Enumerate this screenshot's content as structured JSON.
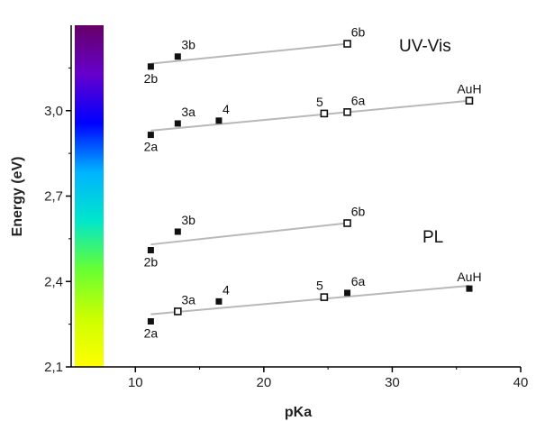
{
  "chart_data": {
    "type": "scatter",
    "xlabel": "pKa",
    "ylabel": "Energy (eV)",
    "xlim": [
      5,
      40
    ],
    "ylim": [
      2.1,
      3.3
    ],
    "x_ticks": [
      10,
      20,
      30,
      40
    ],
    "x_tick_labels": [
      "10",
      "20",
      "30",
      "40"
    ],
    "y_ticks": [
      2.1,
      2.4,
      2.7,
      3.0
    ],
    "y_tick_labels": [
      "2,1",
      "2,4",
      "2,7",
      "3,0"
    ],
    "colorbar": {
      "range": [
        2.1,
        3.3
      ],
      "colors": [
        "#ffff00",
        "#ccff00",
        "#66ff33",
        "#00e6cc",
        "#00b3ff",
        "#0000ff",
        "#6600cc",
        "#660066"
      ]
    },
    "annotations": [
      "UV-Vis",
      "PL"
    ],
    "series": [
      {
        "points": [
          {
            "label": "2b",
            "x": 11.2,
            "y": 3.155,
            "filled": true
          },
          {
            "label": "3b",
            "x": 13.3,
            "y": 3.19,
            "filled": true
          },
          {
            "label": "6b",
            "x": 26.5,
            "y": 3.235,
            "filled": false
          }
        ],
        "fit": [
          [
            11.2,
            3.165
          ],
          [
            26.5,
            3.235
          ]
        ]
      },
      {
        "points": [
          {
            "label": "2a",
            "x": 11.2,
            "y": 2.915,
            "filled": true
          },
          {
            "label": "3a",
            "x": 13.3,
            "y": 2.955,
            "filled": true
          },
          {
            "label": "4",
            "x": 16.5,
            "y": 2.965,
            "filled": true
          },
          {
            "label": "5",
            "x": 24.7,
            "y": 2.99,
            "filled": false
          },
          {
            "label": "6a",
            "x": 26.5,
            "y": 2.995,
            "filled": false
          },
          {
            "label": "AuH",
            "x": 36.0,
            "y": 3.035,
            "filled": false
          }
        ],
        "fit": [
          [
            11.2,
            2.93
          ],
          [
            36.0,
            3.035
          ]
        ]
      },
      {
        "points": [
          {
            "label": "2b",
            "x": 11.2,
            "y": 2.51,
            "filled": true
          },
          {
            "label": "3b",
            "x": 13.3,
            "y": 2.575,
            "filled": true
          },
          {
            "label": "6b",
            "x": 26.5,
            "y": 2.605,
            "filled": false
          }
        ],
        "fit": [
          [
            11.2,
            2.53
          ],
          [
            26.5,
            2.605
          ]
        ]
      },
      {
        "points": [
          {
            "label": "2a",
            "x": 11.2,
            "y": 2.26,
            "filled": true
          },
          {
            "label": "3a",
            "x": 13.3,
            "y": 2.295,
            "filled": false
          },
          {
            "label": "4",
            "x": 16.5,
            "y": 2.33,
            "filled": true
          },
          {
            "label": "5",
            "x": 24.7,
            "y": 2.345,
            "filled": false
          },
          {
            "label": "6a",
            "x": 26.5,
            "y": 2.36,
            "filled": true
          },
          {
            "label": "AuH",
            "x": 36.0,
            "y": 2.375,
            "filled": true
          }
        ],
        "fit": [
          [
            11.2,
            2.285
          ],
          [
            36.0,
            2.385
          ]
        ]
      }
    ]
  }
}
